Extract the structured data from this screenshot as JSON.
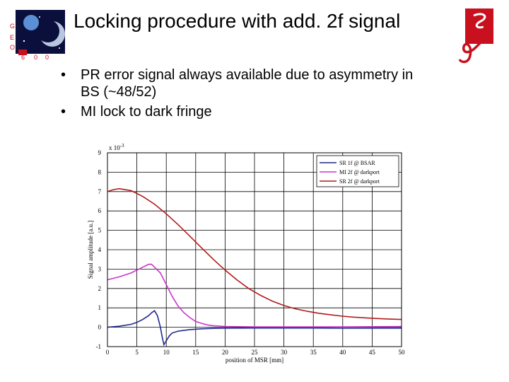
{
  "slide": {
    "title": "Locking procedure with add. 2f signal",
    "bullets": [
      "PR error signal always available due to asymmetry in BS (~48/52)",
      "MI lock to dark fringe"
    ],
    "logo_left_letters": [
      "G",
      "E",
      "O",
      "6",
      "0",
      "0"
    ],
    "logo_left_name": "geo600-logo",
    "logo_right_name": "university-logo"
  },
  "colors": {
    "sr_1f": "#1f2a8c",
    "mi_2f": "#cc33cc",
    "sr_2f": "#b31a1a",
    "logo_red": "#c8101e"
  },
  "chart_data": {
    "type": "line",
    "title": "",
    "xlabel": "position of MSR [mm]",
    "ylabel": "Signal amplitude [a.u.]",
    "y_scale_label": "x 10",
    "y_scale_exponent": "-3",
    "xlim": [
      0,
      50
    ],
    "ylim": [
      -1,
      9
    ],
    "xticks": [
      0,
      5,
      10,
      15,
      20,
      25,
      30,
      35,
      40,
      45,
      50
    ],
    "yticks": [
      -1,
      0,
      1,
      2,
      3,
      4,
      5,
      6,
      7,
      8,
      9
    ],
    "grid": true,
    "legend_position": "top-right",
    "series": [
      {
        "name": "SR 1f @ BSAR",
        "color": "#1f2a8c",
        "x": [
          0,
          2,
          4,
          5,
          6,
          7,
          7.5,
          8,
          8.5,
          9,
          9.3,
          9.6,
          10,
          10.5,
          11,
          12,
          14,
          16,
          18,
          20,
          25,
          30,
          35,
          40,
          45,
          50
        ],
        "y": [
          0.0,
          0.05,
          0.15,
          0.25,
          0.4,
          0.6,
          0.75,
          0.85,
          0.6,
          0.0,
          -0.5,
          -0.9,
          -0.7,
          -0.45,
          -0.3,
          -0.2,
          -0.12,
          -0.08,
          -0.06,
          -0.05,
          -0.04,
          -0.04,
          -0.04,
          -0.05,
          -0.05,
          -0.05
        ]
      },
      {
        "name": "MI 2f @ darkport",
        "color": "#cc33cc",
        "x": [
          0,
          2,
          4,
          5,
          6,
          7,
          7.5,
          8,
          9,
          10,
          11,
          12,
          13,
          14,
          15,
          16,
          17,
          18,
          20,
          25,
          30,
          35,
          40,
          45,
          50
        ],
        "y": [
          2.45,
          2.6,
          2.8,
          2.95,
          3.1,
          3.25,
          3.25,
          3.1,
          2.8,
          2.2,
          1.6,
          1.1,
          0.75,
          0.5,
          0.3,
          0.2,
          0.12,
          0.08,
          0.04,
          0.02,
          0.02,
          0.02,
          0.02,
          0.03,
          0.04
        ]
      },
      {
        "name": "SR 2f @ darkport",
        "color": "#b31a1a",
        "x": [
          0,
          1,
          2,
          3,
          4,
          6,
          8,
          10,
          12,
          14,
          16,
          18,
          20,
          22,
          24,
          26,
          28,
          30,
          32,
          34,
          36,
          38,
          40,
          42,
          44,
          46,
          48,
          50
        ],
        "y": [
          7.0,
          7.1,
          7.15,
          7.1,
          7.05,
          6.75,
          6.35,
          5.85,
          5.3,
          4.7,
          4.1,
          3.5,
          2.95,
          2.45,
          2.0,
          1.65,
          1.35,
          1.12,
          0.95,
          0.82,
          0.72,
          0.64,
          0.57,
          0.52,
          0.48,
          0.45,
          0.42,
          0.4
        ]
      }
    ]
  }
}
